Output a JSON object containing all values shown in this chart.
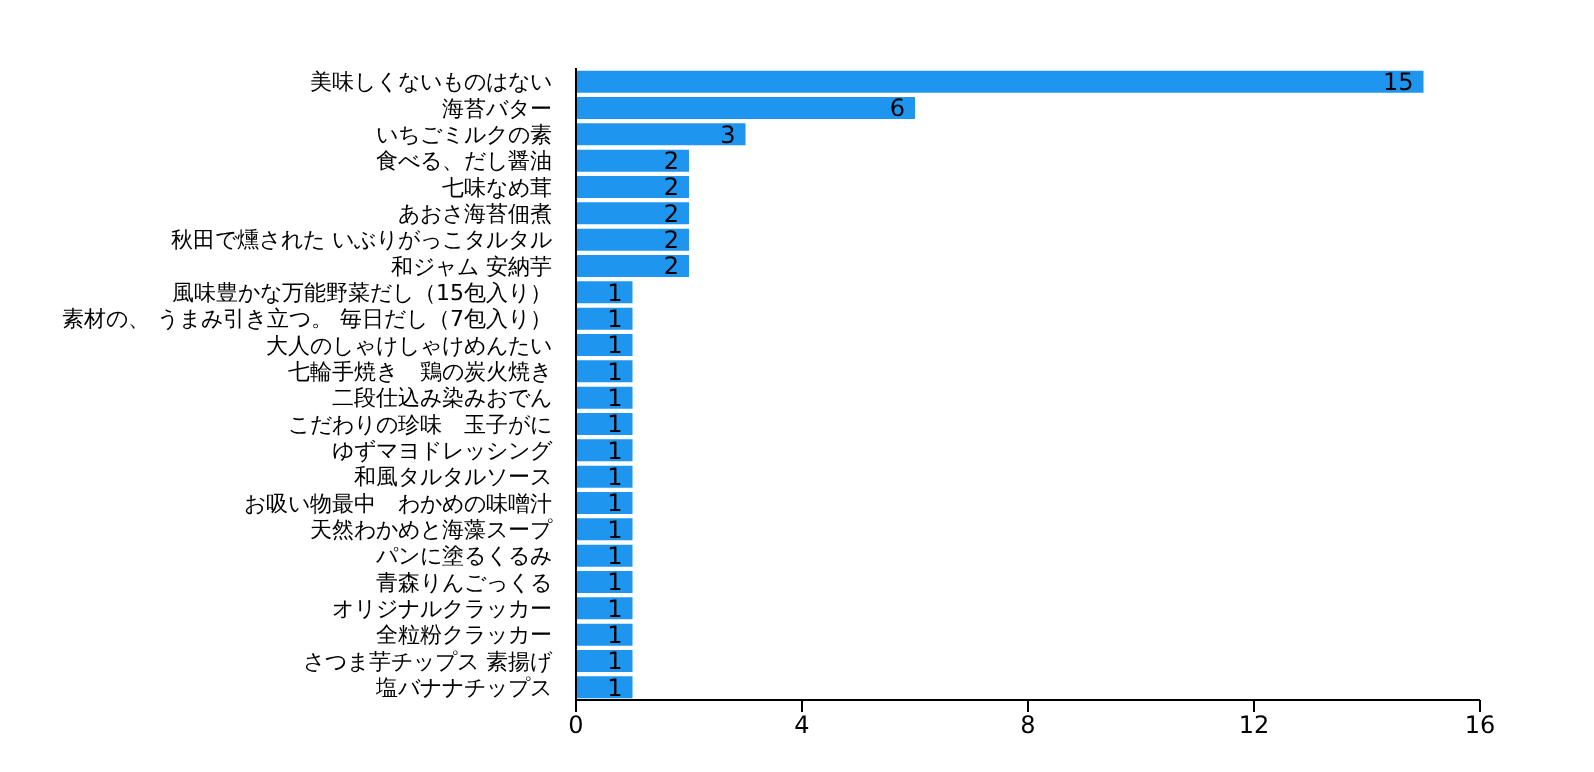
{
  "chart_data": {
    "type": "bar",
    "orientation": "horizontal",
    "categories": [
      "美味しくないものはない",
      "海苔バター",
      "いちごミルクの素",
      "食べる、だし醤油",
      "七味なめ茸",
      "あおさ海苔佃煮",
      "秋田で燻された いぶりがっこタルタル",
      "和ジャム 安納芋",
      "風味豊かな万能野菜だし（15包入り）",
      "素材の、 うまみ引き立つ。 毎日だし（7包入り）",
      "大人のしゃけしゃけめんたい",
      "七輪手焼き　鶏の炭火焼き",
      "二段仕込み染みおでん",
      "こだわりの珍味　玉子がに",
      "ゆずマヨドレッシング",
      "和風タルタルソース",
      "お吸い物最中　わかめの味噌汁",
      "天然わかめと海藻スープ",
      "パンに塗るくるみ",
      "青森りんごっくる",
      "オリジナルクラッカー",
      "全粒粉クラッカー",
      "さつま芋チップス 素揚げ",
      "塩バナナチップス"
    ],
    "values": [
      15,
      6,
      3,
      2,
      2,
      2,
      2,
      2,
      1,
      1,
      1,
      1,
      1,
      1,
      1,
      1,
      1,
      1,
      1,
      1,
      1,
      1,
      1,
      1
    ],
    "color": "#1e96f0",
    "xlim": [
      0,
      16
    ],
    "xticks": [
      0,
      4,
      8,
      12,
      16
    ],
    "data_labels": true,
    "grid": false
  }
}
